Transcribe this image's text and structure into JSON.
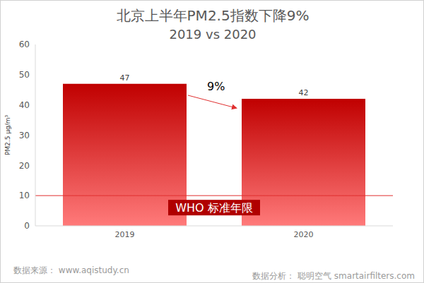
{
  "chart_data": {
    "type": "bar",
    "title": "北京上半年PM2.5指数下降9%",
    "subtitle": "2019 vs 2020",
    "y_label": "PM2.5 μg/m³",
    "categories": [
      "2019",
      "2020"
    ],
    "values": [
      47,
      42
    ],
    "color": "#c00000",
    "ylim": [
      0,
      60
    ],
    "yticks": [
      0,
      10,
      20,
      30,
      40,
      50,
      60
    ],
    "grid": false,
    "data_labels": true,
    "reference_line": {
      "value": 10,
      "label": "WHO 标准年限",
      "color": "#e03030"
    },
    "annotations": [
      {
        "text": "9%"
      }
    ],
    "source": "数据来源： www.aqistudy.cn",
    "credit": "数据分析： 聪明空气 smartairfilters.com"
  }
}
